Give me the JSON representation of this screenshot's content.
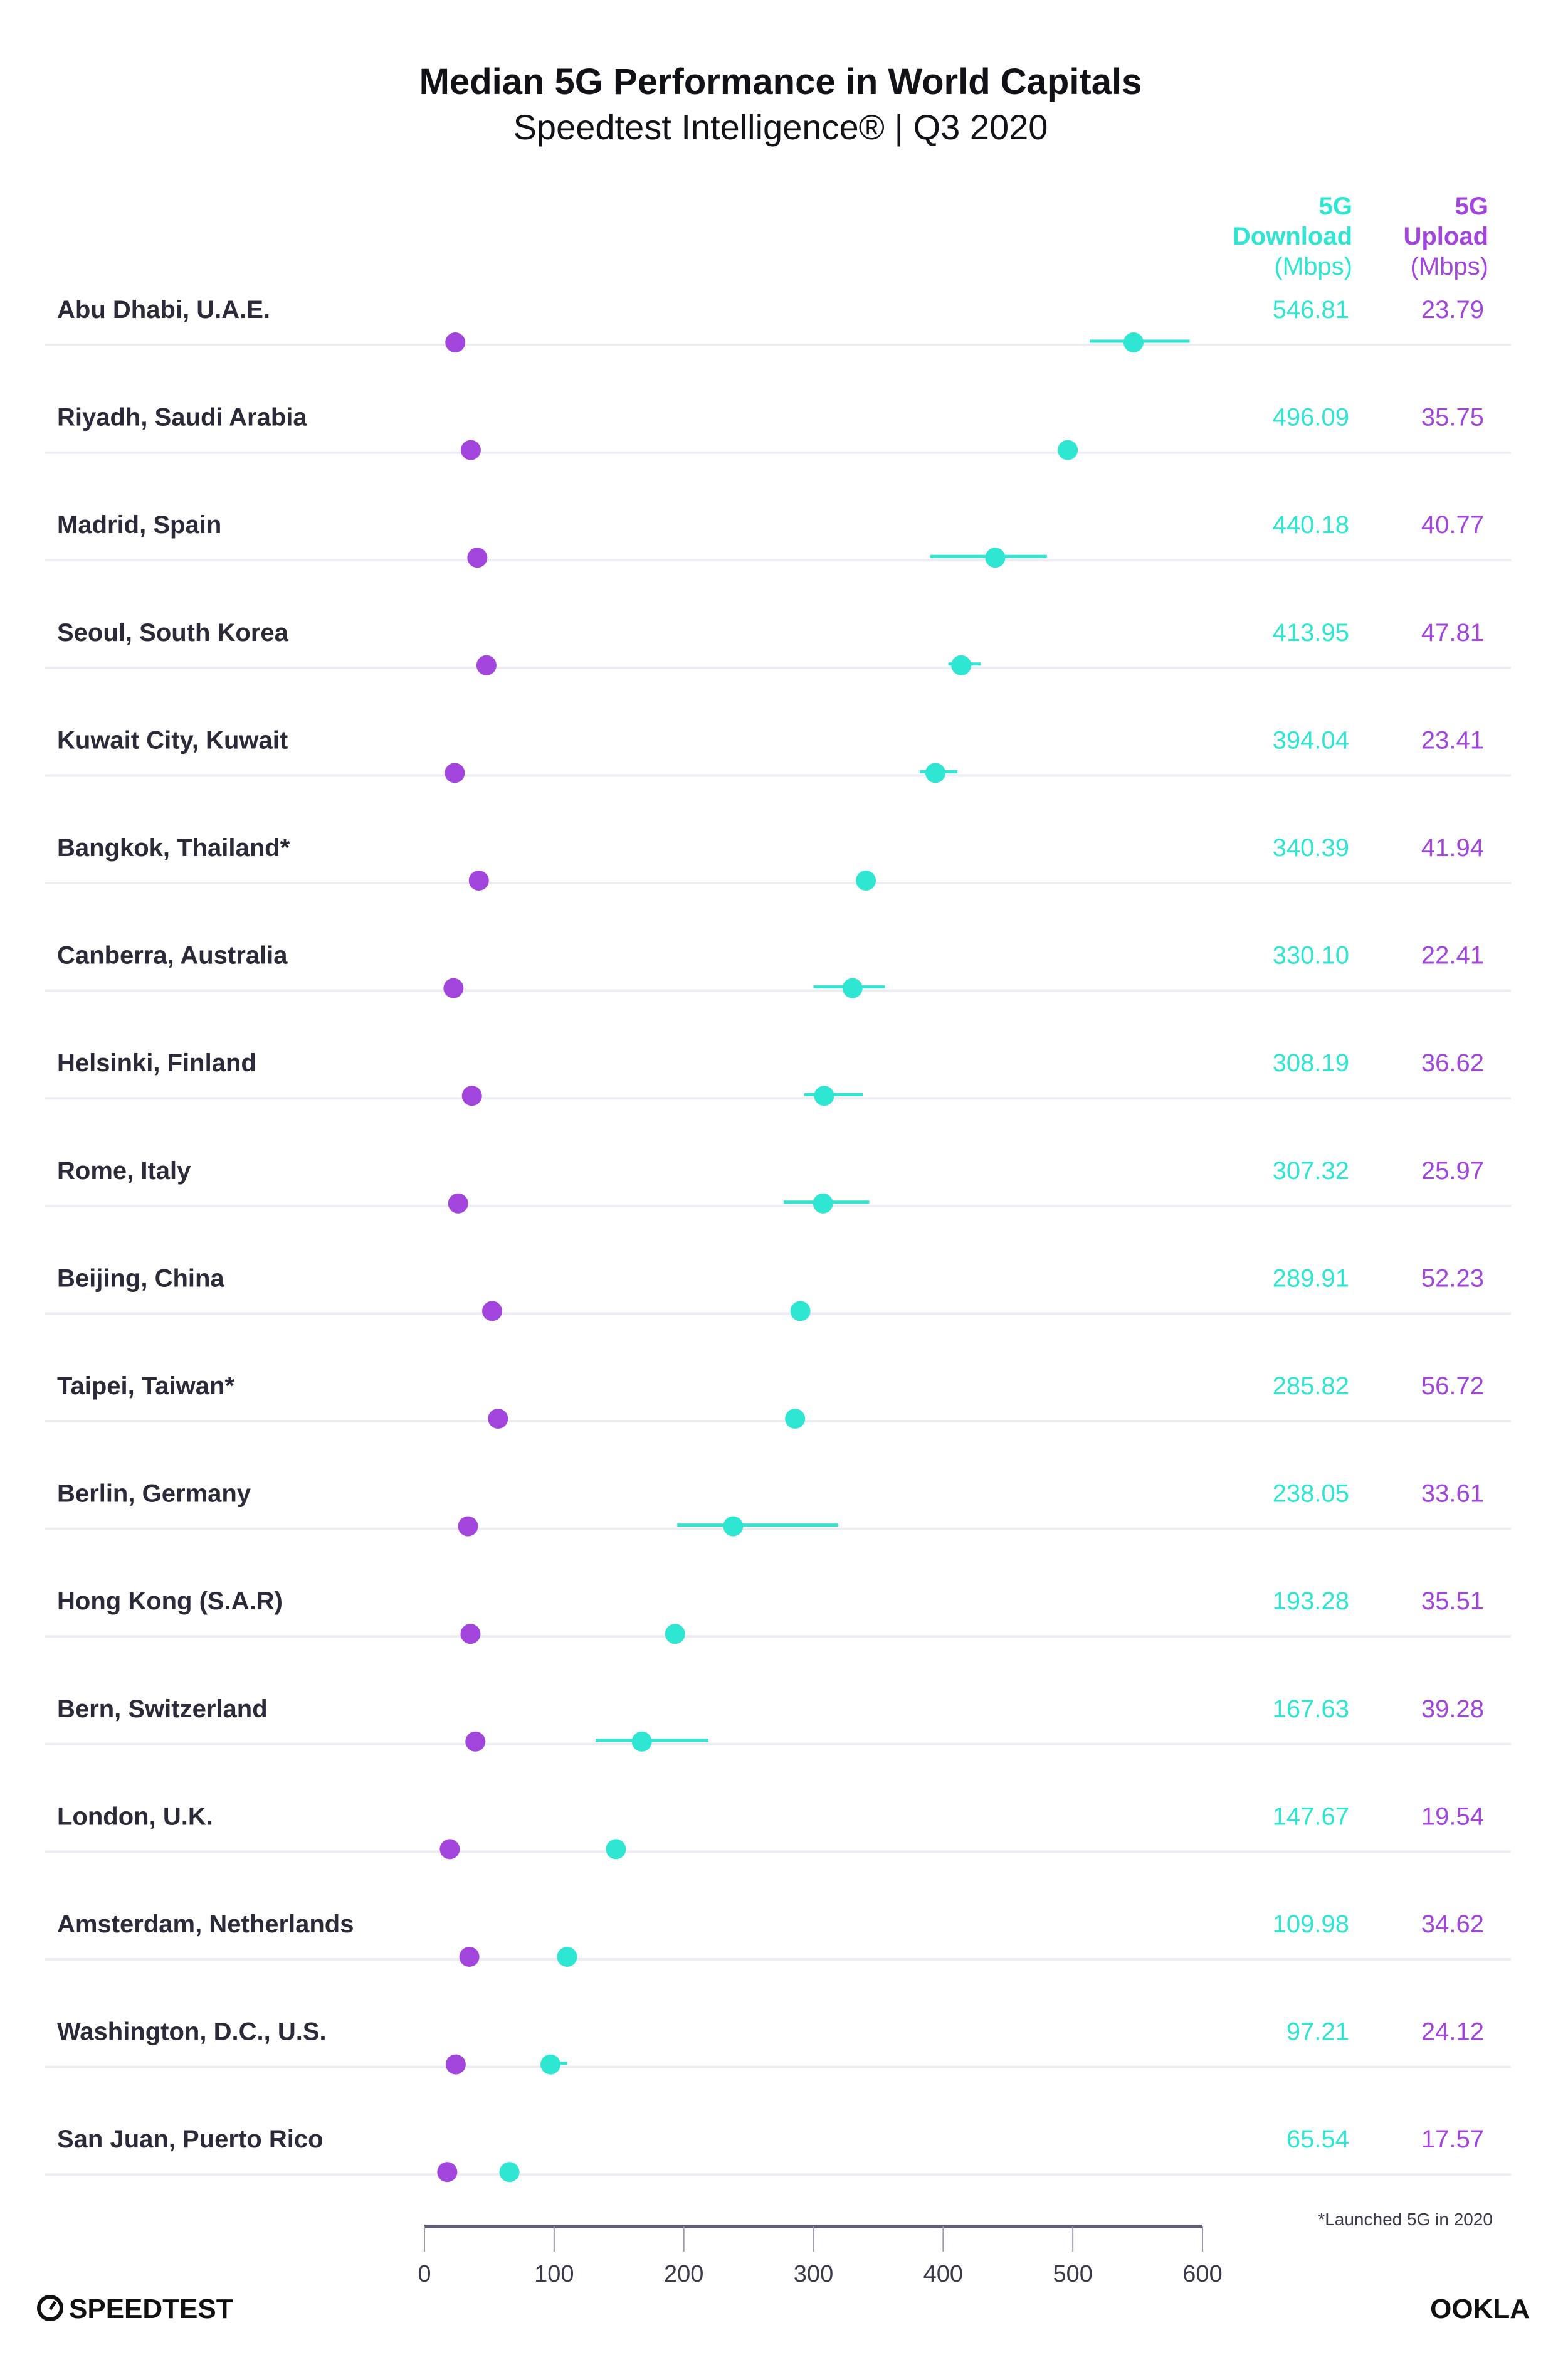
{
  "colors": {
    "download": "#2ee6d2",
    "upload": "#a245dd",
    "text": "#2a2a38",
    "gridline": "#ececf2",
    "axis": "#5e5e70"
  },
  "chart_data": {
    "type": "dot-plot",
    "title": "Median 5G Performance in World Capitals",
    "subtitle": "Speedtest Intelligence® | Q3 2020",
    "xlim": [
      0,
      600
    ],
    "xticks": [
      "0",
      "100",
      "200",
      "300",
      "400",
      "500",
      "600"
    ],
    "grid": false,
    "columns": {
      "download": {
        "line1": "5G",
        "line2": "Download",
        "line3": "(Mbps)"
      },
      "upload": {
        "line1": "5G",
        "line2": "Upload",
        "line3": "(Mbps)"
      }
    },
    "rows": [
      {
        "city": "Abu Dhabi, U.A.E.",
        "download": 546.81,
        "upload": 23.79,
        "download_range": [
          513,
          590
        ]
      },
      {
        "city": "Riyadh, Saudi Arabia",
        "download": 496.09,
        "upload": 35.75,
        "download_range": null
      },
      {
        "city": "Madrid, Spain",
        "download": 440.18,
        "upload": 40.77,
        "download_range": [
          390,
          480
        ]
      },
      {
        "city": "Seoul, South Korea",
        "download": 413.95,
        "upload": 47.81,
        "download_range": [
          404,
          429
        ]
      },
      {
        "city": "Kuwait City, Kuwait",
        "download": 394.04,
        "upload": 23.41,
        "download_range": [
          382,
          411
        ]
      },
      {
        "city": "Bangkok, Thailand*",
        "download": 340.39,
        "upload": 41.94,
        "download_range": null
      },
      {
        "city": "Canberra, Australia",
        "download": 330.1,
        "upload": 22.41,
        "download_range": [
          300,
          355
        ]
      },
      {
        "city": "Helsinki, Finland",
        "download": 308.19,
        "upload": 36.62,
        "download_range": [
          293,
          338
        ]
      },
      {
        "city": "Rome, Italy",
        "download": 307.32,
        "upload": 25.97,
        "download_range": [
          277,
          343
        ]
      },
      {
        "city": "Beijing, China",
        "download": 289.91,
        "upload": 52.23,
        "download_range": null
      },
      {
        "city": "Taipei, Taiwan*",
        "download": 285.82,
        "upload": 56.72,
        "download_range": null
      },
      {
        "city": "Berlin, Germany",
        "download": 238.05,
        "upload": 33.61,
        "download_range": [
          195,
          319
        ]
      },
      {
        "city": "Hong Kong (S.A.R)",
        "download": 193.28,
        "upload": 35.51,
        "download_range": null
      },
      {
        "city": "Bern, Switzerland",
        "download": 167.63,
        "upload": 39.28,
        "download_range": [
          132,
          219
        ]
      },
      {
        "city": "London, U.K.",
        "download": 147.67,
        "upload": 19.54,
        "download_range": null
      },
      {
        "city": "Amsterdam, Netherlands",
        "download": 109.98,
        "upload": 34.62,
        "download_range": null
      },
      {
        "city": "Washington, D.C., U.S.",
        "download": 97.21,
        "upload": 24.12,
        "download_range": [
          90,
          110
        ]
      },
      {
        "city": "San Juan, Puerto Rico",
        "download": 65.54,
        "upload": 17.57,
        "download_range": null
      }
    ],
    "footnote": "*Launched 5G in 2020"
  },
  "footer": {
    "left_logo": "SPEEDTEST",
    "right_logo": "OOKLA"
  }
}
